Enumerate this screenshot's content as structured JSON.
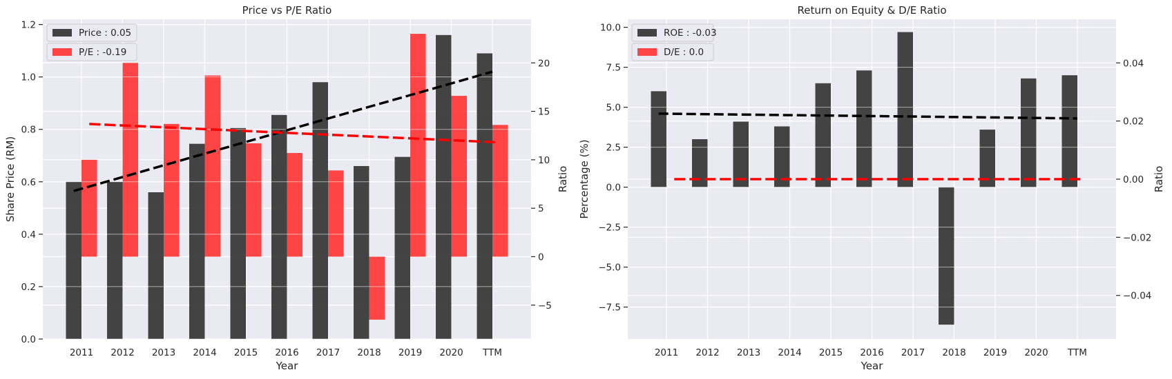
{
  "colors": {
    "plot_bg": "#eaeaf2",
    "grid": "#ffffff",
    "dark_bar": "#3a3a3a",
    "red_bar": "#ff3333",
    "trend_dark": "#000000",
    "trend_red": "#ff0000"
  },
  "chart_data": [
    {
      "type": "bar",
      "title": "Price vs P/E Ratio",
      "xlabel": "Year",
      "ylabel": "Share Price (RM)",
      "y2label": "Ratio",
      "categories": [
        "2011",
        "2012",
        "2013",
        "2014",
        "2015",
        "2016",
        "2017",
        "2018",
        "2019",
        "2020",
        "TTM"
      ],
      "ylim": [
        0,
        1.22
      ],
      "y2lim": [
        -8.5,
        24.5
      ],
      "yticks": [
        0.0,
        0.2,
        0.4,
        0.6,
        0.8,
        1.0,
        1.2
      ],
      "ytick_labels": [
        "0.0",
        "0.2",
        "0.4",
        "0.6",
        "0.8",
        "1.0",
        "1.2"
      ],
      "y2ticks": [
        -5,
        0,
        5,
        10,
        15,
        20
      ],
      "y2tick_labels": [
        "−5",
        "0",
        "5",
        "10",
        "15",
        "20"
      ],
      "legend_position": "top-left",
      "series": [
        {
          "name": "Price : 0.05",
          "axis": "left",
          "color": "#3a3a3a",
          "values": [
            0.6,
            0.6,
            0.56,
            0.745,
            0.805,
            0.855,
            0.98,
            0.66,
            0.695,
            1.16,
            1.09
          ],
          "trend": [
            0.565,
            1.02
          ]
        },
        {
          "name": "P/E : -0.19",
          "axis": "right",
          "color": "#ff3333",
          "values": [
            10.0,
            20.0,
            13.7,
            18.7,
            11.7,
            10.7,
            8.9,
            -6.5,
            23.0,
            16.6,
            13.6
          ],
          "trend": [
            13.7,
            11.8
          ]
        }
      ]
    },
    {
      "type": "bar",
      "title": "Return on Equity & D/E Ratio",
      "xlabel": "Year",
      "ylabel": "Percentage (%)",
      "y2label": "Ratio",
      "categories": [
        "2011",
        "2012",
        "2013",
        "2014",
        "2015",
        "2016",
        "2017",
        "2018",
        "2019",
        "2020",
        "TTM"
      ],
      "ylim": [
        -9.5,
        10.5
      ],
      "y2lim": [
        -0.055,
        0.055
      ],
      "yticks": [
        -7.5,
        -5.0,
        -2.5,
        0.0,
        2.5,
        5.0,
        7.5,
        10.0
      ],
      "ytick_labels": [
        "−7.5",
        "−5.0",
        "−2.5",
        "0.0",
        "2.5",
        "5.0",
        "7.5",
        "10.0"
      ],
      "y2ticks": [
        -0.04,
        -0.02,
        0.0,
        0.02,
        0.04
      ],
      "y2tick_labels": [
        "−0.04",
        "−0.02",
        "0.00",
        "0.02",
        "0.04"
      ],
      "legend_position": "top-left",
      "series": [
        {
          "name": "ROE : -0.03",
          "axis": "left",
          "color": "#3a3a3a",
          "values": [
            6.0,
            3.0,
            4.1,
            3.8,
            6.5,
            7.3,
            9.7,
            -8.6,
            3.6,
            6.8,
            7.0
          ],
          "trend": [
            4.6,
            4.3
          ]
        },
        {
          "name": "D/E : 0.0",
          "axis": "right",
          "color": "#ff3333",
          "values": [
            0,
            0,
            0,
            0,
            0,
            0,
            0,
            0,
            0,
            0,
            0
          ],
          "trend": [
            0.0,
            0.0
          ]
        }
      ]
    }
  ]
}
